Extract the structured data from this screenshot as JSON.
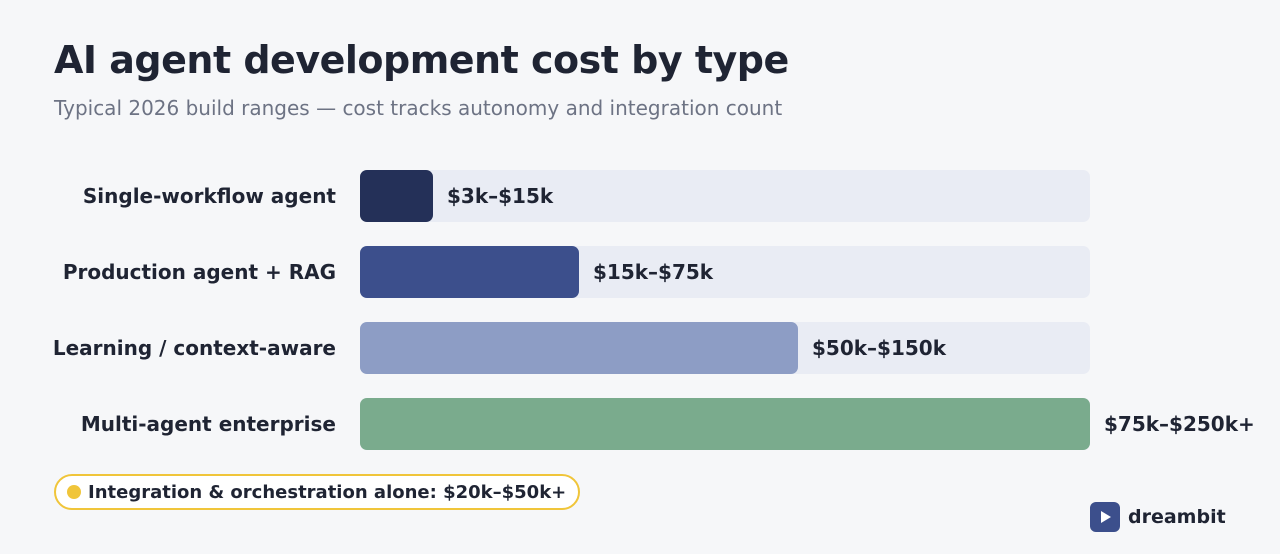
{
  "header": {
    "title": "AI agent development cost by type",
    "subtitle": "Typical 2026 build ranges — cost tracks autonomy and integration count"
  },
  "chart_data": {
    "type": "bar",
    "orientation": "horizontal",
    "title": "AI agent development cost by type",
    "subtitle": "Typical 2026 build ranges — cost tracks autonomy and integration count",
    "categories": [
      "Single-workflow agent",
      "Production agent + RAG",
      "Learning / context-aware",
      "Multi-agent enterprise"
    ],
    "values": [
      0.1,
      0.3,
      0.6,
      1.0
    ],
    "value_labels": [
      "$3k–$15k",
      "$15k–$75k",
      "$50k–$150k",
      "$75k–$250k+"
    ],
    "colors": [
      "#243058",
      "#3c4f8c",
      "#8d9dc5",
      "#7aab8d"
    ],
    "track_color": "#e9ecf4",
    "xlim": [
      0,
      1
    ],
    "grid": false,
    "legend": "none"
  },
  "note": {
    "text": "Integration & orchestration alone: $20k–$50k+",
    "color": "#f0c53a"
  },
  "brand": {
    "name": "dreambit",
    "icon": "play-icon",
    "color": "#3c4f8c"
  }
}
